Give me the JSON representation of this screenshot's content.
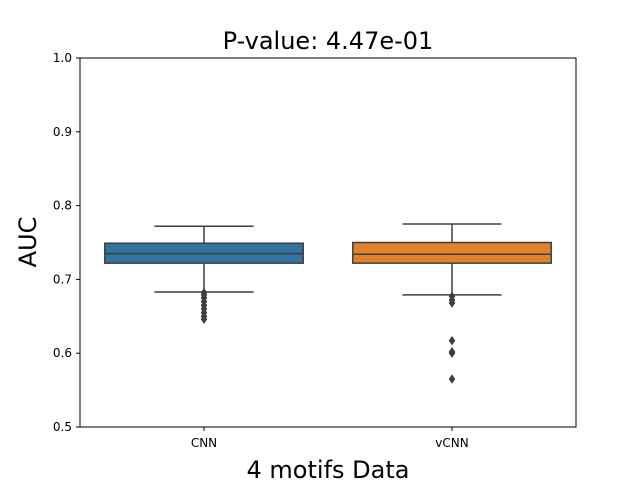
{
  "chart_data": {
    "type": "box",
    "title": "P-value: 4.47e-01",
    "xlabel": "4 motifs Data",
    "ylabel": "AUC",
    "ylim": [
      0.5,
      1.0
    ],
    "yticks": [
      0.5,
      0.6,
      0.7,
      0.8,
      0.9,
      1.0
    ],
    "ytick_labels": [
      "0.5",
      "0.6",
      "0.7",
      "0.8",
      "0.9",
      "1.0"
    ],
    "grid": false,
    "categories": [
      "CNN",
      "vCNN"
    ],
    "series": [
      {
        "color": "#3274a1",
        "whisker_low": 0.683,
        "q1": 0.722,
        "median": 0.735,
        "q3": 0.749,
        "whisker_high": 0.772,
        "outliers": [
          0.682,
          0.679,
          0.675,
          0.67,
          0.665,
          0.66,
          0.655,
          0.65,
          0.646
        ]
      },
      {
        "color": "#e1812c",
        "whisker_low": 0.679,
        "q1": 0.722,
        "median": 0.734,
        "q3": 0.75,
        "whisker_high": 0.775,
        "outliers": [
          0.677,
          0.672,
          0.668,
          0.617,
          0.602,
          0.6,
          0.565
        ]
      }
    ]
  }
}
